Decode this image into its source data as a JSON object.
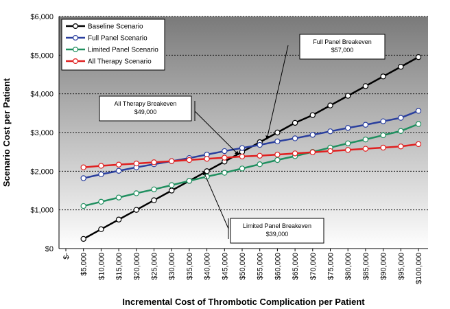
{
  "chart_data": {
    "type": "line",
    "xlabel": "Incremental Cost of Thrombotic Complication per Patient",
    "ylabel": "Scenario Cost per Patient",
    "x": [
      5000,
      10000,
      15000,
      20000,
      25000,
      30000,
      35000,
      40000,
      45000,
      50000,
      55000,
      60000,
      65000,
      70000,
      75000,
      80000,
      85000,
      90000,
      95000,
      100000
    ],
    "x_tick_labels": [
      "$-",
      "$5,000",
      "$10,000",
      "$15,000",
      "$20,000",
      "$25,000",
      "$30,000",
      "$35,000",
      "$40,000",
      "$45,000",
      "$50,000",
      "$55,000",
      "$60,000",
      "$65,000",
      "$70,000",
      "$75,000",
      "$80,000",
      "$85,000",
      "$90,000",
      "$95,000",
      "$100,000"
    ],
    "xlim": [
      0,
      100000
    ],
    "ylim": [
      0,
      6000
    ],
    "y_ticks": [
      0,
      1000,
      2000,
      3000,
      4000,
      5000,
      6000
    ],
    "y_tick_labels": [
      "$0",
      "$1,000",
      "$2,000",
      "$3,000",
      "$4,000",
      "$5,000",
      "$6,000"
    ],
    "grid": "horizontal dotted",
    "background": "vertical gradient, dark gray at top to white at bottom",
    "legend_position": "top-left",
    "series": [
      {
        "name": "Baseline Scenario",
        "color": "#000000",
        "values": [
          250,
          500,
          750,
          1000,
          1250,
          1500,
          1750,
          2000,
          2250,
          2500,
          2750,
          3000,
          3250,
          3450,
          3700,
          3950,
          4200,
          4450,
          4700,
          4950
        ]
      },
      {
        "name": "Full Panel Scenario",
        "color": "#2a3f9e",
        "values": [
          1820,
          1920,
          2010,
          2100,
          2180,
          2260,
          2340,
          2430,
          2520,
          2600,
          2680,
          2770,
          2850,
          2940,
          3030,
          3120,
          3200,
          3290,
          3380,
          3560
        ]
      },
      {
        "name": "Limited Panel Scenario",
        "color": "#1f8f5f",
        "values": [
          1100,
          1210,
          1320,
          1430,
          1530,
          1640,
          1750,
          1860,
          1960,
          2070,
          2180,
          2290,
          2390,
          2500,
          2610,
          2720,
          2820,
          2930,
          3040,
          3220
        ]
      },
      {
        "name": "All Therapy Scenario",
        "color": "#e02020",
        "values": [
          2100,
          2140,
          2170,
          2200,
          2230,
          2260,
          2290,
          2320,
          2350,
          2380,
          2400,
          2430,
          2460,
          2490,
          2520,
          2550,
          2580,
          2610,
          2640,
          2700
        ]
      }
    ],
    "annotations": [
      {
        "lines": [
          "Full Panel Breakeven",
          "$57,000"
        ],
        "x": 57000,
        "y": 2770
      },
      {
        "lines": [
          "All Therapy Breakeven",
          "$49,000"
        ],
        "x": 49000,
        "y": 2370
      },
      {
        "lines": [
          "Limited Panel Breakeven",
          "$39,000"
        ],
        "x": 39000,
        "y": 1950
      }
    ]
  }
}
